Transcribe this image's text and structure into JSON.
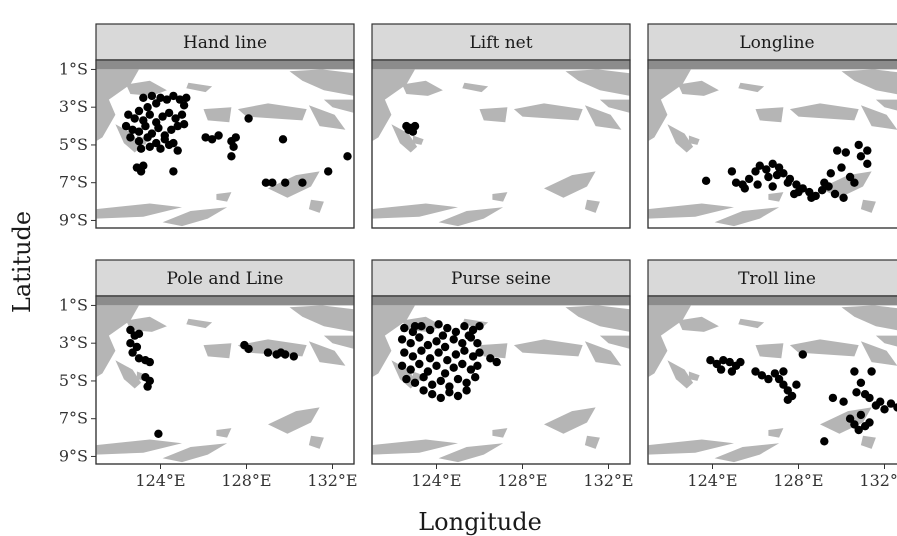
{
  "chart_data": {
    "type": "scatter",
    "xlabel": "Longitude",
    "ylabel": "Latitude",
    "xlim": [
      121,
      133
    ],
    "ylim": [
      -9.4,
      -0.5
    ],
    "x_ticks": [
      124,
      128,
      132
    ],
    "x_tick_labels": [
      "124°E",
      "128°E",
      "132°E"
    ],
    "y_ticks": [
      -1,
      -3,
      -5,
      -7,
      -9
    ],
    "y_tick_labels": [
      "1°S",
      "3°S",
      "5°S",
      "7°S",
      "9°S"
    ],
    "facet_layout": "2 rows x 3 columns",
    "grid": false,
    "background_map": "grey landmasses",
    "point_color": "#000000",
    "facets": [
      {
        "name": "Hand line",
        "points": [
          [
            123.2,
            -2.5
          ],
          [
            123.4,
            -3.0
          ],
          [
            123.6,
            -2.4
          ],
          [
            123.8,
            -2.8
          ],
          [
            124.0,
            -2.5
          ],
          [
            124.3,
            -2.6
          ],
          [
            124.6,
            -2.4
          ],
          [
            124.9,
            -2.6
          ],
          [
            125.1,
            -2.9
          ],
          [
            125.2,
            -2.5
          ],
          [
            122.5,
            -3.4
          ],
          [
            122.8,
            -3.6
          ],
          [
            123.0,
            -3.2
          ],
          [
            123.2,
            -3.7
          ],
          [
            123.5,
            -3.4
          ],
          [
            123.8,
            -3.8
          ],
          [
            124.1,
            -3.5
          ],
          [
            124.4,
            -3.3
          ],
          [
            124.7,
            -3.6
          ],
          [
            125.0,
            -3.4
          ],
          [
            122.4,
            -4.0
          ],
          [
            122.7,
            -4.2
          ],
          [
            123.0,
            -4.3
          ],
          [
            123.3,
            -4.0
          ],
          [
            123.6,
            -4.4
          ],
          [
            123.9,
            -4.1
          ],
          [
            124.2,
            -4.5
          ],
          [
            124.5,
            -4.2
          ],
          [
            124.8,
            -4.0
          ],
          [
            125.1,
            -3.9
          ],
          [
            122.6,
            -4.6
          ],
          [
            123.0,
            -4.8
          ],
          [
            123.4,
            -4.6
          ],
          [
            123.8,
            -4.9
          ],
          [
            124.2,
            -4.7
          ],
          [
            124.6,
            -4.9
          ],
          [
            123.1,
            -5.2
          ],
          [
            123.5,
            -5.1
          ],
          [
            124.0,
            -5.2
          ],
          [
            124.4,
            -5.0
          ],
          [
            124.8,
            -5.3
          ],
          [
            122.9,
            -6.2
          ],
          [
            123.1,
            -6.4
          ],
          [
            123.2,
            -6.1
          ],
          [
            124.6,
            -6.4
          ],
          [
            126.1,
            -4.6
          ],
          [
            126.4,
            -4.7
          ],
          [
            126.7,
            -4.5
          ],
          [
            127.3,
            -4.8
          ],
          [
            127.5,
            -4.6
          ],
          [
            127.4,
            -5.1
          ],
          [
            127.3,
            -5.6
          ],
          [
            128.1,
            -3.6
          ],
          [
            129.7,
            -4.7
          ],
          [
            128.9,
            -7.0
          ],
          [
            129.2,
            -7.0
          ],
          [
            129.8,
            -7.0
          ],
          [
            130.6,
            -7.0
          ],
          [
            131.8,
            -6.4
          ],
          [
            132.7,
            -5.6
          ]
        ]
      },
      {
        "name": "Lift net",
        "points": [
          [
            122.6,
            -4.0
          ],
          [
            122.8,
            -4.1
          ],
          [
            122.9,
            -4.3
          ],
          [
            123.0,
            -4.0
          ],
          [
            122.7,
            -4.2
          ]
        ]
      },
      {
        "name": "Longline",
        "points": [
          [
            123.7,
            -6.9
          ],
          [
            124.9,
            -6.4
          ],
          [
            125.1,
            -7.0
          ],
          [
            125.4,
            -7.1
          ],
          [
            125.7,
            -6.8
          ],
          [
            126.0,
            -6.4
          ],
          [
            126.2,
            -6.1
          ],
          [
            126.5,
            -6.3
          ],
          [
            126.8,
            -6.0
          ],
          [
            127.1,
            -6.2
          ],
          [
            127.3,
            -6.5
          ],
          [
            127.6,
            -6.8
          ],
          [
            127.9,
            -7.1
          ],
          [
            128.2,
            -7.3
          ],
          [
            128.5,
            -7.5
          ],
          [
            128.8,
            -7.7
          ],
          [
            129.1,
            -7.4
          ],
          [
            129.4,
            -7.2
          ],
          [
            129.7,
            -7.6
          ],
          [
            130.1,
            -7.8
          ],
          [
            126.1,
            -7.1
          ],
          [
            126.6,
            -6.7
          ],
          [
            127.0,
            -6.6
          ],
          [
            127.5,
            -7.0
          ],
          [
            128.0,
            -7.5
          ],
          [
            129.5,
            -6.5
          ],
          [
            130.0,
            -6.2
          ],
          [
            129.8,
            -5.3
          ],
          [
            130.2,
            -5.4
          ],
          [
            130.8,
            -5.0
          ],
          [
            131.2,
            -5.3
          ],
          [
            130.9,
            -5.6
          ],
          [
            131.2,
            -6.0
          ],
          [
            130.4,
            -6.7
          ],
          [
            128.6,
            -7.8
          ],
          [
            125.5,
            -7.3
          ],
          [
            126.8,
            -7.2
          ],
          [
            127.8,
            -7.6
          ],
          [
            129.2,
            -7.0
          ],
          [
            130.6,
            -7.0
          ]
        ]
      },
      {
        "name": "Pole and Line",
        "points": [
          [
            122.6,
            -2.3
          ],
          [
            122.8,
            -2.6
          ],
          [
            122.6,
            -3.0
          ],
          [
            122.9,
            -3.2
          ],
          [
            123.0,
            -2.5
          ],
          [
            122.7,
            -3.5
          ],
          [
            123.0,
            -3.8
          ],
          [
            123.3,
            -3.9
          ],
          [
            123.5,
            -4.0
          ],
          [
            123.3,
            -4.8
          ],
          [
            123.5,
            -5.0
          ],
          [
            123.4,
            -5.3
          ],
          [
            123.9,
            -7.8
          ],
          [
            127.9,
            -3.1
          ],
          [
            128.1,
            -3.3
          ],
          [
            129.0,
            -3.5
          ],
          [
            129.4,
            -3.6
          ],
          [
            129.8,
            -3.6
          ],
          [
            130.2,
            -3.7
          ],
          [
            129.6,
            -3.5
          ]
        ]
      },
      {
        "name": "Purse seine",
        "points": [
          [
            122.5,
            -2.2
          ],
          [
            122.9,
            -2.4
          ],
          [
            123.3,
            -2.1
          ],
          [
            123.7,
            -2.3
          ],
          [
            124.1,
            -2.0
          ],
          [
            124.5,
            -2.2
          ],
          [
            124.9,
            -2.4
          ],
          [
            125.3,
            -2.1
          ],
          [
            125.7,
            -2.3
          ],
          [
            126.0,
            -2.1
          ],
          [
            122.4,
            -2.8
          ],
          [
            122.8,
            -3.0
          ],
          [
            123.2,
            -2.7
          ],
          [
            123.6,
            -3.1
          ],
          [
            124.0,
            -2.9
          ],
          [
            124.4,
            -3.2
          ],
          [
            124.8,
            -2.8
          ],
          [
            125.2,
            -3.0
          ],
          [
            125.6,
            -2.7
          ],
          [
            125.9,
            -3.0
          ],
          [
            122.5,
            -3.5
          ],
          [
            122.9,
            -3.7
          ],
          [
            123.3,
            -3.4
          ],
          [
            123.7,
            -3.8
          ],
          [
            124.1,
            -3.5
          ],
          [
            124.5,
            -3.9
          ],
          [
            124.9,
            -3.6
          ],
          [
            125.3,
            -3.4
          ],
          [
            125.7,
            -3.7
          ],
          [
            126.0,
            -3.5
          ],
          [
            122.4,
            -4.2
          ],
          [
            122.8,
            -4.4
          ],
          [
            123.2,
            -4.1
          ],
          [
            123.6,
            -4.5
          ],
          [
            124.0,
            -4.2
          ],
          [
            124.4,
            -4.6
          ],
          [
            124.8,
            -4.3
          ],
          [
            125.2,
            -4.1
          ],
          [
            125.6,
            -4.4
          ],
          [
            125.9,
            -4.2
          ],
          [
            122.6,
            -4.9
          ],
          [
            123.0,
            -5.1
          ],
          [
            123.4,
            -4.8
          ],
          [
            123.8,
            -5.2
          ],
          [
            124.2,
            -5.0
          ],
          [
            124.6,
            -5.3
          ],
          [
            125.0,
            -4.9
          ],
          [
            125.4,
            -5.1
          ],
          [
            125.8,
            -4.8
          ],
          [
            123.4,
            -5.5
          ],
          [
            123.8,
            -5.7
          ],
          [
            124.2,
            -5.9
          ],
          [
            124.6,
            -5.6
          ],
          [
            125.0,
            -5.8
          ],
          [
            125.4,
            -5.5
          ],
          [
            126.5,
            -3.8
          ],
          [
            126.8,
            -4.0
          ],
          [
            125.5,
            -2.6
          ],
          [
            123.0,
            -2.1
          ],
          [
            124.3,
            -2.6
          ]
        ]
      },
      {
        "name": "Troll line",
        "points": [
          [
            123.9,
            -3.9
          ],
          [
            124.2,
            -4.1
          ],
          [
            124.5,
            -3.9
          ],
          [
            124.8,
            -4.0
          ],
          [
            125.1,
            -4.2
          ],
          [
            125.3,
            -4.0
          ],
          [
            124.4,
            -4.4
          ],
          [
            124.9,
            -4.5
          ],
          [
            126.0,
            -4.5
          ],
          [
            126.3,
            -4.7
          ],
          [
            126.6,
            -4.9
          ],
          [
            126.9,
            -4.6
          ],
          [
            127.1,
            -4.9
          ],
          [
            127.3,
            -5.2
          ],
          [
            127.5,
            -5.5
          ],
          [
            127.7,
            -5.8
          ],
          [
            127.5,
            -6.0
          ],
          [
            127.9,
            -5.2
          ],
          [
            127.3,
            -4.5
          ],
          [
            128.2,
            -3.6
          ],
          [
            129.2,
            -8.2
          ],
          [
            129.6,
            -5.9
          ],
          [
            130.1,
            -6.1
          ],
          [
            130.4,
            -7.0
          ],
          [
            130.6,
            -7.3
          ],
          [
            130.8,
            -7.6
          ],
          [
            131.1,
            -7.4
          ],
          [
            131.3,
            -7.2
          ],
          [
            130.9,
            -6.8
          ],
          [
            130.7,
            -5.6
          ],
          [
            130.9,
            -5.1
          ],
          [
            130.6,
            -4.5
          ],
          [
            131.4,
            -4.5
          ],
          [
            131.3,
            -5.9
          ],
          [
            131.6,
            -6.3
          ],
          [
            132.0,
            -6.5
          ],
          [
            132.3,
            -6.2
          ],
          [
            132.6,
            -6.4
          ],
          [
            131.8,
            -6.1
          ],
          [
            131.1,
            -5.7
          ]
        ]
      }
    ]
  }
}
